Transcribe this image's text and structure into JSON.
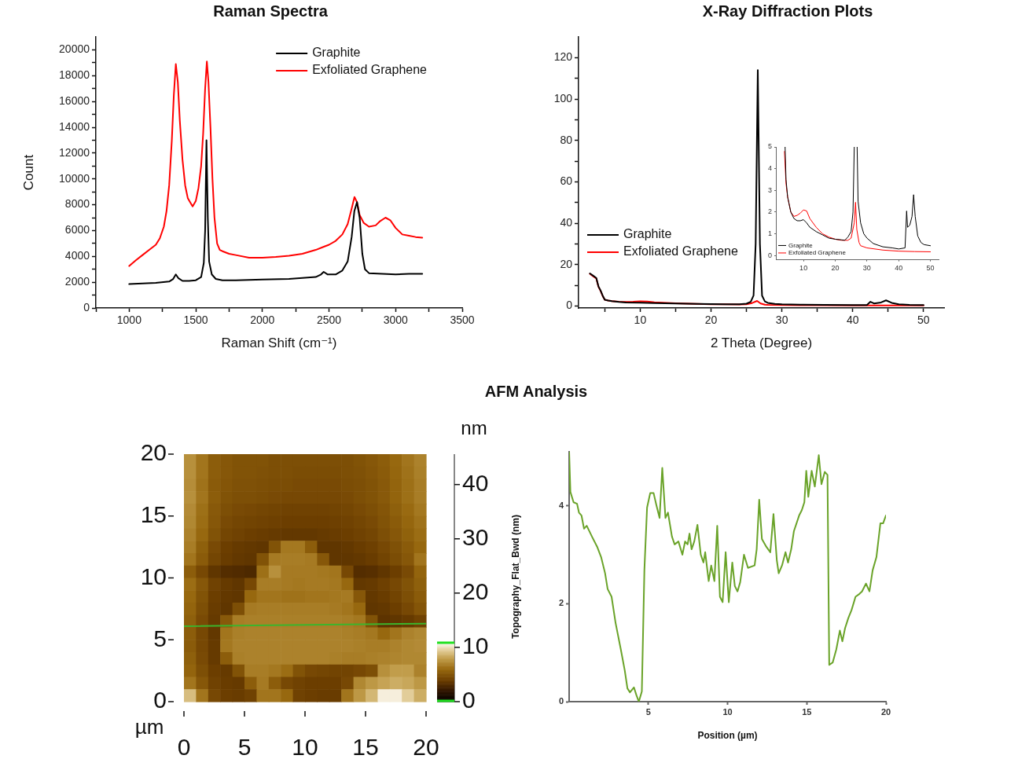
{
  "chart_data": [
    {
      "type": "line",
      "title": "Raman Spectra",
      "xlabel": "Raman Shift (cm⁻¹)",
      "ylabel": "Count",
      "xlim": [
        750,
        3500
      ],
      "ylim": [
        0,
        21000
      ],
      "xticks": [
        {
          "value": 750,
          "label": null
        },
        1000,
        {
          "value": 1250,
          "label": null
        },
        1500,
        {
          "value": 1750,
          "label": null
        },
        2000,
        {
          "value": 2250,
          "label": null
        },
        2500,
        {
          "value": 2750,
          "label": null
        },
        3000,
        {
          "value": 3250,
          "label": null
        },
        3500
      ],
      "yticks": [
        0,
        {
          "value": 1000,
          "label": null
        },
        2000,
        {
          "value": 3000,
          "label": null
        },
        4000,
        {
          "value": 5000,
          "label": null
        },
        6000,
        {
          "value": 7000,
          "label": null
        },
        8000,
        {
          "value": 9000,
          "label": null
        },
        10000,
        {
          "value": 11000,
          "label": null
        },
        12000,
        {
          "value": 13000,
          "label": null
        },
        14000,
        {
          "value": 15000,
          "label": null
        },
        16000,
        {
          "value": 17000,
          "label": null
        },
        18000,
        {
          "value": 19000,
          "label": null
        },
        20000
      ],
      "legend": "top right",
      "series": [
        {
          "name": "Graphite",
          "color": "#000000",
          "x": [
            1000,
            1100,
            1200,
            1300,
            1330,
            1350,
            1370,
            1400,
            1450,
            1500,
            1540,
            1560,
            1570,
            1580,
            1590,
            1600,
            1620,
            1650,
            1700,
            1800,
            2000,
            2200,
            2400,
            2440,
            2460,
            2490,
            2550,
            2600,
            2640,
            2670,
            2690,
            2710,
            2730,
            2750,
            2770,
            2800,
            2900,
            3000,
            3100,
            3200
          ],
          "values": [
            1850,
            1900,
            1950,
            2050,
            2250,
            2600,
            2300,
            2100,
            2100,
            2150,
            2400,
            3500,
            6000,
            13000,
            7000,
            3600,
            2600,
            2250,
            2150,
            2150,
            2200,
            2250,
            2400,
            2600,
            2800,
            2600,
            2600,
            2900,
            3600,
            5500,
            7500,
            8200,
            7000,
            4200,
            3000,
            2700,
            2650,
            2600,
            2650,
            2650
          ]
        },
        {
          "name": "Exfoliated Graphene",
          "color": "#ff0000",
          "x": [
            1000,
            1050,
            1100,
            1150,
            1200,
            1230,
            1260,
            1280,
            1300,
            1320,
            1335,
            1350,
            1365,
            1380,
            1400,
            1420,
            1440,
            1476,
            1500,
            1520,
            1540,
            1555,
            1570,
            1583,
            1595,
            1610,
            1625,
            1640,
            1660,
            1680,
            1700,
            1750,
            1800,
            1900,
            2000,
            2100,
            2200,
            2300,
            2400,
            2450,
            2500,
            2550,
            2600,
            2640,
            2670,
            2691,
            2710,
            2730,
            2760,
            2800,
            2850,
            2880,
            2924,
            2960,
            3000,
            3050,
            3100,
            3150,
            3200
          ],
          "values": [
            3250,
            3700,
            4100,
            4500,
            4900,
            5400,
            6300,
            7500,
            9500,
            13000,
            16500,
            18900,
            17500,
            14500,
            11500,
            9500,
            8500,
            7870,
            8300,
            9300,
            11000,
            13500,
            17000,
            19100,
            17500,
            14000,
            10000,
            7000,
            5000,
            4500,
            4400,
            4200,
            4100,
            3900,
            3900,
            3950,
            4050,
            4200,
            4500,
            4700,
            4900,
            5200,
            5700,
            6500,
            7700,
            8600,
            8200,
            7200,
            6600,
            6300,
            6400,
            6700,
            7000,
            6800,
            6200,
            5700,
            5600,
            5500,
            5450
          ]
        }
      ]
    },
    {
      "type": "line",
      "title": "X-Ray Diffraction Plots",
      "xlabel": "2 Theta (Degree)",
      "xlim": [
        1.3,
        52.9
      ],
      "ylim": [
        -1,
        130
      ],
      "xticks": [
        {
          "value": 5,
          "label": null
        },
        10,
        {
          "value": 15,
          "label": null
        },
        20,
        {
          "value": 25,
          "label": null
        },
        30,
        {
          "value": 35,
          "label": null
        },
        40,
        {
          "value": 45,
          "label": null
        },
        50
      ],
      "yticks": [
        0,
        {
          "value": 10,
          "label": null
        },
        20,
        {
          "value": 30,
          "label": null
        },
        40,
        {
          "value": 50,
          "label": null
        },
        60,
        {
          "value": 70,
          "label": null
        },
        80,
        {
          "value": 90,
          "label": null
        },
        100,
        {
          "value": 110,
          "label": null
        },
        120
      ],
      "legend": "left",
      "series": [
        {
          "name": "Graphite",
          "color": "#000000",
          "x": [
            2.9,
            3.4,
            3.8,
            4.1,
            4.4,
            4.7,
            5.0,
            5.5,
            6,
            7,
            8,
            10,
            12,
            15,
            18,
            20,
            22,
            24,
            25,
            25.6,
            26.0,
            26.3,
            26.6,
            26.9,
            27.2,
            27.6,
            28,
            29,
            30,
            33,
            36,
            40,
            42,
            42.5,
            43,
            44,
            44.7,
            45.5,
            46.5,
            48,
            50
          ],
          "values": [
            15.7,
            14.5,
            13.5,
            9.5,
            7.5,
            5,
            3,
            2.6,
            2.3,
            1.9,
            1.7,
            1.6,
            1.4,
            1.2,
            1.0,
            0.9,
            0.8,
            0.8,
            1.1,
            2.0,
            5,
            30,
            114,
            30,
            5,
            2.2,
            1.5,
            1.0,
            0.8,
            0.6,
            0.5,
            0.4,
            0.4,
            2.0,
            1.2,
            1.7,
            2.7,
            1.5,
            0.8,
            0.5,
            0.4
          ]
        },
        {
          "name": "Exfoliated Graphene",
          "color": "#ff0000",
          "x": [
            2.9,
            3.4,
            3.8,
            4.1,
            4.4,
            4.7,
            5.0,
            5.5,
            6,
            7,
            8,
            9,
            10,
            11,
            12,
            15,
            18,
            20,
            22,
            24,
            25,
            25.8,
            26.5,
            27.0,
            27.6,
            28,
            30,
            35,
            40,
            45,
            50
          ],
          "values": [
            15.5,
            14.2,
            13.3,
            9.3,
            7.3,
            4.8,
            3,
            2.6,
            2.3,
            2.0,
            1.9,
            2.0,
            2.2,
            2.1,
            1.8,
            1.3,
            1.0,
            0.8,
            0.8,
            0.7,
            0.8,
            1.4,
            2.4,
            1.2,
            0.6,
            0.5,
            0.4,
            0.3,
            0.2,
            0.2,
            0.2
          ]
        }
      ]
    },
    {
      "type": "line",
      "xlim": [
        1.3,
        52.7
      ],
      "ylim": [
        -0.2,
        5
      ],
      "xticks": [
        10,
        20,
        30,
        40,
        50
      ],
      "yticks": [
        0,
        1,
        2,
        3,
        4,
        5
      ],
      "legend": "bottom left",
      "series": [
        {
          "name": "Graphite",
          "color": "#000000",
          "x": [
            4.2,
            4.5,
            5,
            6,
            7,
            8,
            9,
            10,
            11,
            12,
            14,
            16,
            18,
            20,
            22,
            23,
            24,
            25,
            25.6,
            26.0,
            26.4,
            26.9,
            27.2,
            28,
            29,
            30,
            32,
            35,
            38,
            40,
            42,
            42.5,
            42.8,
            43.5,
            44.2,
            44.7,
            45.2,
            46,
            47,
            48,
            50
          ],
          "values": [
            5,
            3.5,
            2.7,
            2.0,
            1.7,
            1.6,
            1.6,
            1.65,
            1.5,
            1.3,
            1.1,
            0.95,
            0.8,
            0.75,
            0.72,
            0.7,
            0.85,
            1.1,
            2,
            5,
            null,
            5,
            2.5,
            1.5,
            1.0,
            0.8,
            0.55,
            0.4,
            0.35,
            0.3,
            0.35,
            2.05,
            1.3,
            1.4,
            1.8,
            2.8,
            1.8,
            0.9,
            0.6,
            0.5,
            0.45
          ]
        },
        {
          "name": "Exfoliated Graphene",
          "color": "#ff0000",
          "x": [
            4.0,
            4.5,
            5,
            6,
            7,
            8,
            9,
            10,
            11,
            12,
            14,
            16,
            18,
            20,
            22,
            24,
            25,
            26,
            26.4,
            26.8,
            27.5,
            28,
            30,
            35,
            40,
            45,
            50
          ],
          "values": [
            4.8,
            3.3,
            2.7,
            2.0,
            1.8,
            1.85,
            1.95,
            2.1,
            2.05,
            1.7,
            1.3,
            1.0,
            0.85,
            0.75,
            0.7,
            0.7,
            0.8,
            1.5,
            2.45,
            1.2,
            0.6,
            0.45,
            0.35,
            0.25,
            0.2,
            0.18,
            0.17
          ]
        }
      ]
    },
    {
      "type": "heatmap",
      "title": "AFM Analysis",
      "xlabel": "µm",
      "clabel": "nm",
      "xlim": [
        0,
        20
      ],
      "ylim": [
        0,
        20
      ],
      "xticks": [
        0,
        5,
        10,
        15,
        20
      ],
      "yticks": [
        0,
        5,
        10,
        15,
        20
      ],
      "y2lim": [
        0,
        45.6
      ],
      "y2ticks": [
        20,
        30,
        40
      ],
      "clim": [
        0,
        11
      ],
      "cticks": [
        0,
        10
      ],
      "cells": [
        [
          7.5,
          6.5,
          5.5,
          5.2,
          5.0,
          5.0,
          5.0,
          4.8,
          4.8,
          4.8,
          4.8,
          4.8,
          4.8,
          4.8,
          5.0,
          5.2,
          5.5,
          6.0,
          6.5,
          7.0
        ],
        [
          7.5,
          6.5,
          5.5,
          5.2,
          5.0,
          5.0,
          4.9,
          4.8,
          4.8,
          4.7,
          4.7,
          4.7,
          4.7,
          4.8,
          4.9,
          5.1,
          5.4,
          5.9,
          6.4,
          6.9
        ],
        [
          7.4,
          6.4,
          5.4,
          5.1,
          4.9,
          4.9,
          4.8,
          4.7,
          4.7,
          4.6,
          4.6,
          4.6,
          4.6,
          4.7,
          4.8,
          5.0,
          5.3,
          5.8,
          6.3,
          6.8
        ],
        [
          7.5,
          6.5,
          5.5,
          5.0,
          4.8,
          4.8,
          4.7,
          4.6,
          4.5,
          4.5,
          4.5,
          4.5,
          4.5,
          4.6,
          4.8,
          5.0,
          5.3,
          5.8,
          6.3,
          6.8
        ],
        [
          7.3,
          6.3,
          5.3,
          4.8,
          4.6,
          4.5,
          4.4,
          4.3,
          4.2,
          4.2,
          4.2,
          4.2,
          4.3,
          4.4,
          4.6,
          4.8,
          5.1,
          5.6,
          6.1,
          6.6
        ],
        [
          7.2,
          6.2,
          5.2,
          4.6,
          4.4,
          4.3,
          4.2,
          4.1,
          4.0,
          4.0,
          4.0,
          4.0,
          4.1,
          4.2,
          4.4,
          4.6,
          5.0,
          5.4,
          5.9,
          6.4
        ],
        [
          7.0,
          6.0,
          5.0,
          4.4,
          4.2,
          4.0,
          3.9,
          3.8,
          3.7,
          3.7,
          3.7,
          3.8,
          3.9,
          4.0,
          4.2,
          4.4,
          4.8,
          5.2,
          5.7,
          6.2
        ],
        [
          6.8,
          5.6,
          4.6,
          4.0,
          3.8,
          3.7,
          3.6,
          5.0,
          6.6,
          6.6,
          5.5,
          3.6,
          3.6,
          3.7,
          3.9,
          4.1,
          4.5,
          4.9,
          5.4,
          6.0
        ],
        [
          6.5,
          5.4,
          4.4,
          3.9,
          3.7,
          3.6,
          5.0,
          6.7,
          6.8,
          6.8,
          6.7,
          5.2,
          3.6,
          3.6,
          3.7,
          3.9,
          4.3,
          4.7,
          5.2,
          6.5
        ],
        [
          5.5,
          4.5,
          3.6,
          3.2,
          3.1,
          3.0,
          6.3,
          7.5,
          6.7,
          6.7,
          6.7,
          6.6,
          6.5,
          4.5,
          3.2,
          3.3,
          3.6,
          4.0,
          4.6,
          5.8
        ],
        [
          6.2,
          5.2,
          4.2,
          3.8,
          3.6,
          4.5,
          6.8,
          6.8,
          6.7,
          6.6,
          6.7,
          6.7,
          6.6,
          6.0,
          3.7,
          3.8,
          4.1,
          4.5,
          5.0,
          5.6
        ],
        [
          6.0,
          5.0,
          4.0,
          3.7,
          3.6,
          6.0,
          6.5,
          6.5,
          6.4,
          6.4,
          6.5,
          6.5,
          6.6,
          6.7,
          5.2,
          3.7,
          3.9,
          4.3,
          4.8,
          5.4
        ],
        [
          5.8,
          4.8,
          3.9,
          3.6,
          4.8,
          6.7,
          6.8,
          6.8,
          6.8,
          6.8,
          6.8,
          6.8,
          6.7,
          6.5,
          6.0,
          3.6,
          3.7,
          4.0,
          4.5,
          5.1
        ],
        [
          5.6,
          4.6,
          3.8,
          5.3,
          6.8,
          6.9,
          6.9,
          6.9,
          6.9,
          6.9,
          6.9,
          6.9,
          6.9,
          6.8,
          6.6,
          5.0,
          3.5,
          3.6,
          3.8,
          4.2
        ],
        [
          5.5,
          4.5,
          3.7,
          6.5,
          6.9,
          7.0,
          7.0,
          7.0,
          7.0,
          7.0,
          7.0,
          7.0,
          7.0,
          6.9,
          6.8,
          6.6,
          6.0,
          6.5,
          7.0,
          7.2
        ],
        [
          5.4,
          4.5,
          3.8,
          6.6,
          7.0,
          7.0,
          7.0,
          7.0,
          7.0,
          7.0,
          7.0,
          7.0,
          7.0,
          7.0,
          6.9,
          6.8,
          6.8,
          7.0,
          7.2,
          7.3
        ],
        [
          5.6,
          4.6,
          3.8,
          5.5,
          6.9,
          7.0,
          7.0,
          7.0,
          7.0,
          7.0,
          7.0,
          7.0,
          6.9,
          6.8,
          6.8,
          6.9,
          7.0,
          7.1,
          7.2,
          7.2
        ],
        [
          5.8,
          4.8,
          4.0,
          3.8,
          5.0,
          6.8,
          6.8,
          6.6,
          6.2,
          5.0,
          4.5,
          4.4,
          4.3,
          4.3,
          4.5,
          4.8,
          7.5,
          8.0,
          8.0,
          7.0
        ],
        [
          6.5,
          5.2,
          4.2,
          3.9,
          3.8,
          5.5,
          6.7,
          5.5,
          4.5,
          4.2,
          4.0,
          4.0,
          4.0,
          4.5,
          7.2,
          7.8,
          8.2,
          8.5,
          8.3,
          7.8
        ],
        [
          9.0,
          6.5,
          4.5,
          4.0,
          3.9,
          4.2,
          6.5,
          6.5,
          6.0,
          4.2,
          4.0,
          3.9,
          3.9,
          6.5,
          7.8,
          8.8,
          10.5,
          10.5,
          9.5,
          8.5
        ]
      ],
      "series": [
        {
          "type": "line",
          "color": "#3cb42c",
          "x": [
            0,
            20
          ],
          "values": [
            6.1,
            6.3
          ]
        }
      ]
    },
    {
      "type": "line",
      "xlabel": "Position (µm)",
      "ylabel": "Topography_Flat_Bwd (nm)",
      "xlim": [
        0,
        20
      ],
      "ylim": [
        0,
        5.1
      ],
      "xticks": [
        5,
        10,
        15,
        20
      ],
      "yticks": [
        0,
        2,
        4
      ],
      "series": [
        {
          "color": "#6aa329",
          "x": [
            0,
            0.08,
            0.28,
            0.5,
            0.62,
            0.78,
            0.94,
            1.11,
            1.44,
            1.77,
            2.02,
            2.27,
            2.43,
            2.68,
            2.93,
            3.26,
            3.51,
            3.68,
            3.84,
            4.09,
            4.25,
            4.4,
            4.59,
            4.75,
            4.92,
            5.12,
            5.33,
            5.5,
            5.71,
            5.88,
            6.08,
            6.24,
            6.49,
            6.66,
            6.9,
            7.15,
            7.32,
            7.48,
            7.6,
            7.73,
            7.9,
            8.1,
            8.31,
            8.48,
            8.59,
            8.81,
            8.97,
            9.17,
            9.35,
            9.52,
            9.69,
            9.88,
            10.08,
            10.3,
            10.46,
            10.63,
            10.8,
            11.04,
            11.29,
            11.71,
            11.84,
            12.0,
            12.17,
            12.45,
            12.7,
            12.9,
            13.11,
            13.23,
            13.44,
            13.66,
            13.82,
            14.02,
            14.19,
            14.52,
            14.69,
            14.85,
            14.97,
            15.1,
            15.31,
            15.51,
            15.76,
            15.93,
            16.14,
            16.31,
            16.42,
            16.64,
            16.87,
            17.09,
            17.25,
            17.42,
            17.63,
            17.83,
            18.08,
            18.33,
            18.49,
            18.74,
            18.96,
            19.16,
            19.4,
            19.65,
            19.82,
            20.0
          ],
          "values": [
            5.1,
            4.28,
            4.07,
            4.04,
            3.86,
            3.8,
            3.53,
            3.59,
            3.37,
            3.16,
            2.95,
            2.62,
            2.3,
            2.14,
            1.61,
            1.07,
            0.64,
            0.27,
            0.19,
            0.29,
            0.13,
            0,
            0.21,
            2.68,
            3.96,
            4.26,
            4.26,
            4.02,
            3.75,
            4.77,
            3.75,
            3.86,
            3.37,
            3.21,
            3.27,
            3.0,
            3.27,
            3.21,
            3.43,
            3.11,
            3.27,
            3.61,
            3.0,
            2.84,
            3.05,
            2.46,
            2.78,
            2.46,
            3.59,
            2.14,
            2.03,
            3.05,
            2.03,
            2.84,
            2.36,
            2.25,
            2.44,
            3.0,
            2.73,
            2.78,
            3.11,
            4.12,
            3.32,
            3.16,
            3.05,
            3.83,
            2.89,
            2.62,
            2.78,
            3.05,
            2.84,
            3.11,
            3.48,
            3.8,
            3.91,
            4.07,
            4.71,
            4.18,
            4.71,
            4.39,
            5.03,
            4.44,
            4.69,
            4.63,
            0.75,
            0.8,
            1.07,
            1.45,
            1.23,
            1.5,
            1.71,
            1.87,
            2.14,
            2.2,
            2.25,
            2.41,
            2.25,
            2.68,
            2.95,
            3.64,
            3.64,
            3.8
          ]
        }
      ]
    }
  ]
}
